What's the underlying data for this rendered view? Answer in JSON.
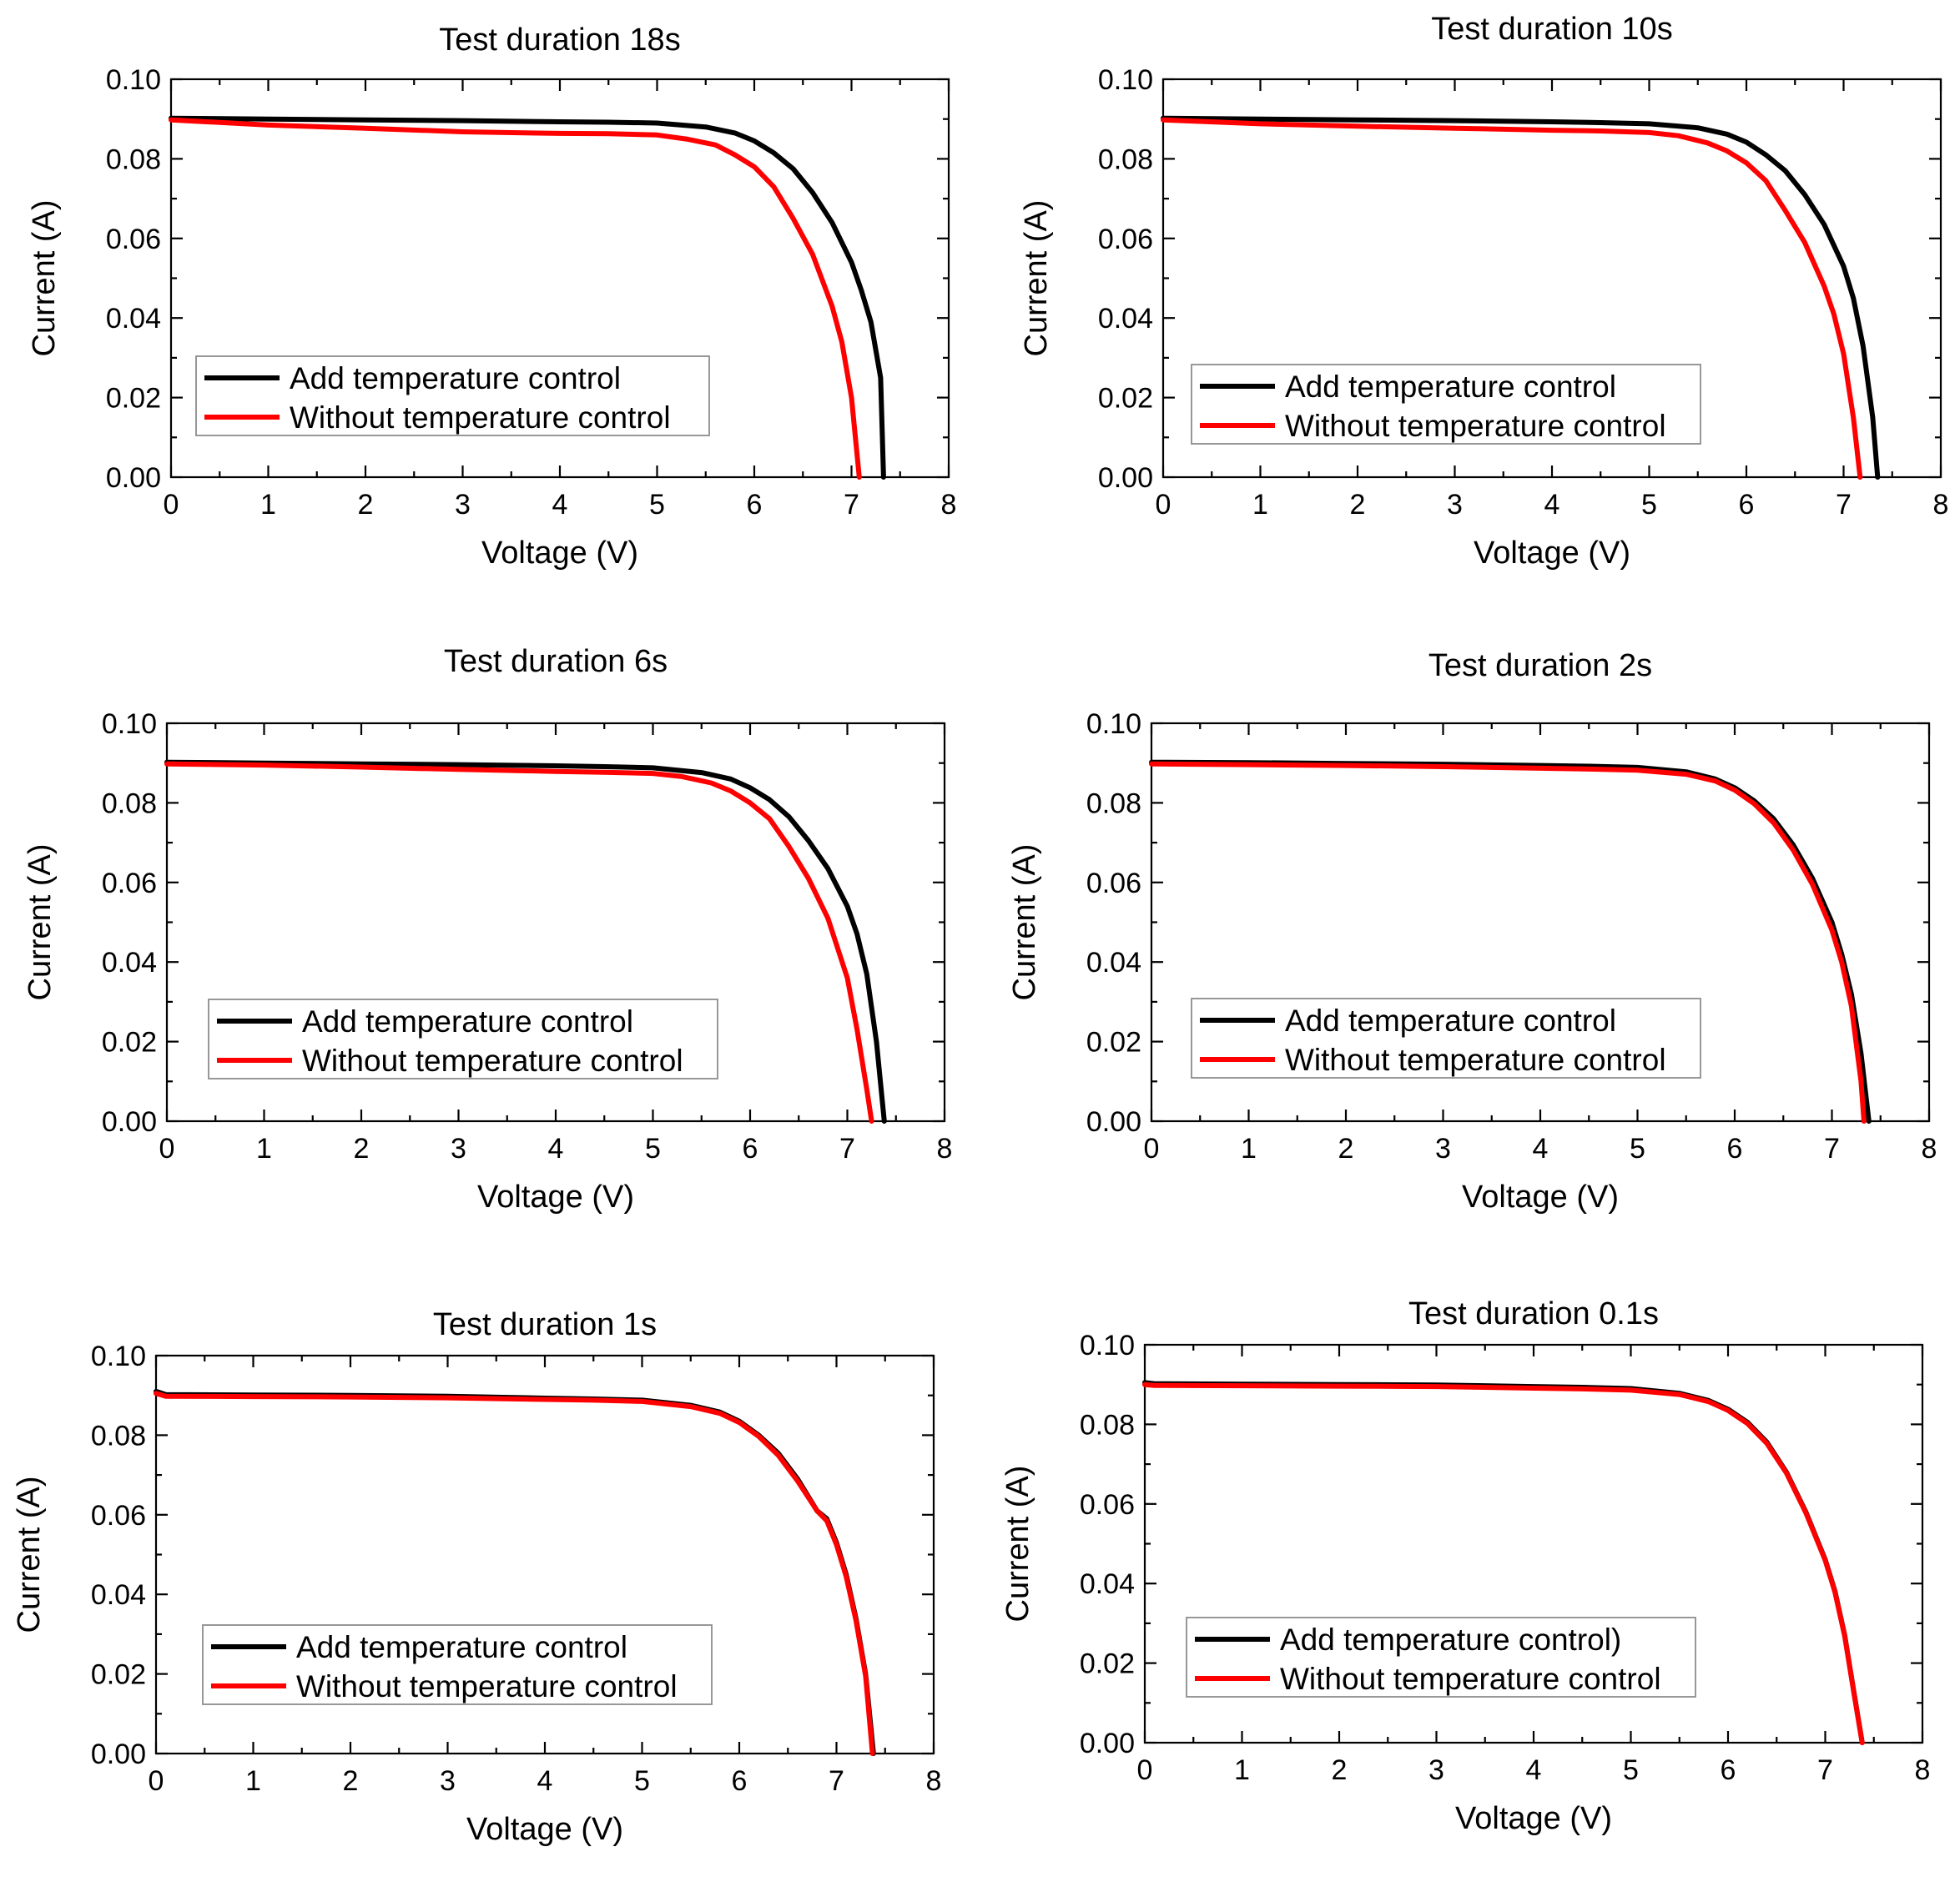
{
  "colors": {
    "with_control": "#000000",
    "without_control": "#ff0000"
  },
  "chart_data": [
    {
      "type": "line",
      "title": "Test duration 18s",
      "xlabel": "Voltage (V)",
      "ylabel": "Current (A)",
      "xlim": [
        0,
        8
      ],
      "ylim": [
        0,
        0.1
      ],
      "xticks": [
        "0",
        "1",
        "2",
        "3",
        "4",
        "5",
        "6",
        "7",
        "8"
      ],
      "yticks": [
        "0.00",
        "0.02",
        "0.04",
        "0.06",
        "0.08",
        "0.10"
      ],
      "grid": false,
      "legend_position": "lower-left",
      "series": [
        {
          "name": "Add temperature control",
          "color": "#000000",
          "x": [
            0,
            1,
            2,
            3,
            4,
            4.5,
            5,
            5.5,
            5.8,
            6.0,
            6.2,
            6.4,
            6.6,
            6.8,
            7.0,
            7.1,
            7.2,
            7.3,
            7.33
          ],
          "y": [
            0.0902,
            0.09,
            0.0898,
            0.0896,
            0.0893,
            0.0892,
            0.089,
            0.088,
            0.0865,
            0.0845,
            0.0815,
            0.0775,
            0.0715,
            0.064,
            0.054,
            0.047,
            0.039,
            0.025,
            0.0
          ]
        },
        {
          "name": "Without temperature control",
          "color": "#ff0000",
          "x": [
            0,
            1,
            2,
            3,
            4,
            4.5,
            5,
            5.3,
            5.6,
            5.8,
            6.0,
            6.2,
            6.4,
            6.6,
            6.8,
            6.9,
            7.0,
            7.08
          ],
          "y": [
            0.0898,
            0.0885,
            0.0877,
            0.0868,
            0.0864,
            0.0863,
            0.086,
            0.085,
            0.0835,
            0.081,
            0.078,
            0.073,
            0.065,
            0.056,
            0.043,
            0.034,
            0.02,
            0.0
          ]
        }
      ]
    },
    {
      "type": "line",
      "title": "Test duration 10s",
      "xlabel": "Voltage (V)",
      "ylabel": "Current (A)",
      "xlim": [
        0,
        8
      ],
      "ylim": [
        0,
        0.1
      ],
      "xticks": [
        "0",
        "1",
        "2",
        "3",
        "4",
        "5",
        "6",
        "7",
        "8"
      ],
      "yticks": [
        "0.00",
        "0.02",
        "0.04",
        "0.06",
        "0.08",
        "0.10"
      ],
      "grid": false,
      "legend_position": "lower-left",
      "series": [
        {
          "name": "Add temperature control",
          "color": "#000000",
          "x": [
            0,
            1,
            2,
            3,
            4,
            4.5,
            5,
            5.5,
            5.8,
            6.0,
            6.2,
            6.4,
            6.6,
            6.8,
            7.0,
            7.1,
            7.2,
            7.3,
            7.35
          ],
          "y": [
            0.0902,
            0.09,
            0.0898,
            0.0896,
            0.0893,
            0.0891,
            0.0888,
            0.0878,
            0.0862,
            0.0842,
            0.081,
            0.077,
            0.071,
            0.0635,
            0.053,
            0.045,
            0.033,
            0.015,
            0.0
          ]
        },
        {
          "name": "Without temperature control",
          "color": "#ff0000",
          "x": [
            0,
            1,
            2,
            3,
            4,
            4.5,
            5,
            5.3,
            5.6,
            5.8,
            6.0,
            6.2,
            6.4,
            6.6,
            6.8,
            6.9,
            7.0,
            7.1,
            7.17
          ],
          "y": [
            0.0898,
            0.0888,
            0.0882,
            0.0877,
            0.0872,
            0.087,
            0.0866,
            0.0858,
            0.084,
            0.082,
            0.079,
            0.0745,
            0.067,
            0.059,
            0.048,
            0.041,
            0.031,
            0.015,
            0.0
          ]
        }
      ]
    },
    {
      "type": "line",
      "title": "Test duration 6s",
      "xlabel": "Voltage (V)",
      "ylabel": "Current (A)",
      "xlim": [
        0,
        8
      ],
      "ylim": [
        0,
        0.1
      ],
      "xticks": [
        "0",
        "1",
        "2",
        "3",
        "4",
        "5",
        "6",
        "7",
        "8"
      ],
      "yticks": [
        "0.00",
        "0.02",
        "0.04",
        "0.06",
        "0.08",
        "0.10"
      ],
      "grid": false,
      "legend_position": "lower-left",
      "series": [
        {
          "name": "Add temperature control",
          "color": "#000000",
          "x": [
            0,
            1,
            2,
            3,
            4,
            4.5,
            5,
            5.5,
            5.8,
            6.0,
            6.2,
            6.4,
            6.6,
            6.8,
            7.0,
            7.1,
            7.2,
            7.3,
            7.38
          ],
          "y": [
            0.0902,
            0.09,
            0.0898,
            0.0896,
            0.0893,
            0.0891,
            0.0888,
            0.0876,
            0.086,
            0.0838,
            0.0808,
            0.0765,
            0.0705,
            0.0635,
            0.054,
            0.047,
            0.037,
            0.02,
            0.0
          ]
        },
        {
          "name": "Without temperature control",
          "color": "#ff0000",
          "x": [
            0,
            1,
            2,
            3,
            4,
            4.5,
            5,
            5.3,
            5.6,
            5.8,
            6.0,
            6.2,
            6.4,
            6.6,
            6.8,
            7.0,
            7.1,
            7.2,
            7.25
          ],
          "y": [
            0.0898,
            0.0895,
            0.089,
            0.0884,
            0.0879,
            0.0877,
            0.0874,
            0.0866,
            0.085,
            0.083,
            0.08,
            0.076,
            0.069,
            0.061,
            0.051,
            0.036,
            0.023,
            0.008,
            0.0
          ]
        }
      ]
    },
    {
      "type": "line",
      "title": "Test duration 2s",
      "xlabel": "Voltage (V)",
      "ylabel": "Current (A)",
      "xlim": [
        0,
        8
      ],
      "ylim": [
        0,
        0.1
      ],
      "xticks": [
        "0",
        "1",
        "2",
        "3",
        "4",
        "5",
        "6",
        "7",
        "8"
      ],
      "yticks": [
        "0.00",
        "0.02",
        "0.04",
        "0.06",
        "0.08",
        "0.10"
      ],
      "grid": false,
      "legend_position": "lower-left",
      "series": [
        {
          "name": "Add temperature control",
          "color": "#000000",
          "x": [
            0,
            1,
            2,
            3,
            4,
            4.5,
            5,
            5.5,
            5.8,
            6.0,
            6.2,
            6.4,
            6.6,
            6.8,
            7.0,
            7.1,
            7.2,
            7.3,
            7.38
          ],
          "y": [
            0.0902,
            0.0901,
            0.0899,
            0.0897,
            0.0894,
            0.0892,
            0.0889,
            0.0878,
            0.086,
            0.0838,
            0.0805,
            0.076,
            0.0695,
            0.061,
            0.05,
            0.042,
            0.032,
            0.017,
            0.0
          ]
        },
        {
          "name": "Without temperature control",
          "color": "#ff0000",
          "x": [
            0,
            1,
            2,
            3,
            4,
            4.5,
            5,
            5.5,
            5.8,
            6.0,
            6.2,
            6.4,
            6.6,
            6.8,
            7.0,
            7.1,
            7.2,
            7.3,
            7.33
          ],
          "y": [
            0.0898,
            0.0896,
            0.0894,
            0.0891,
            0.0887,
            0.0885,
            0.0882,
            0.0872,
            0.0855,
            0.0832,
            0.0798,
            0.075,
            0.0682,
            0.0595,
            0.048,
            0.04,
            0.029,
            0.01,
            0.0
          ]
        }
      ]
    },
    {
      "type": "line",
      "title": "Test duration 1s",
      "xlabel": "Voltage (V)",
      "ylabel": "Current (A)",
      "xlim": [
        0,
        8
      ],
      "ylim": [
        0,
        0.1
      ],
      "xticks": [
        "0",
        "1",
        "2",
        "3",
        "4",
        "5",
        "6",
        "7",
        "8"
      ],
      "yticks": [
        "0.00",
        "0.02",
        "0.04",
        "0.06",
        "0.08",
        "0.10"
      ],
      "grid": false,
      "legend_position": "lower-left",
      "series": [
        {
          "name": "Add temperature control",
          "color": "#000000",
          "x": [
            0,
            0.1,
            1,
            2,
            3,
            4,
            4.5,
            5,
            5.5,
            5.8,
            6.0,
            6.2,
            6.4,
            6.6,
            6.8,
            6.9,
            7.0,
            7.1,
            7.2,
            7.3,
            7.38
          ],
          "y": [
            0.091,
            0.0902,
            0.0901,
            0.09,
            0.0898,
            0.0893,
            0.0891,
            0.0888,
            0.0875,
            0.0858,
            0.0835,
            0.08,
            0.0755,
            0.069,
            0.061,
            0.059,
            0.053,
            0.045,
            0.034,
            0.02,
            0.0
          ]
        },
        {
          "name": "Without temperature control",
          "color": "#ff0000",
          "x": [
            0,
            0.1,
            1,
            2,
            3,
            4,
            4.5,
            5,
            5.5,
            5.8,
            6.0,
            6.2,
            6.4,
            6.6,
            6.8,
            6.9,
            7.0,
            7.1,
            7.2,
            7.3,
            7.37
          ],
          "y": [
            0.0905,
            0.0898,
            0.0897,
            0.0896,
            0.0894,
            0.089,
            0.0888,
            0.0885,
            0.0872,
            0.0855,
            0.0832,
            0.0797,
            0.075,
            0.0685,
            0.061,
            0.0585,
            0.0525,
            0.0445,
            0.0335,
            0.0195,
            0.0
          ]
        }
      ]
    },
    {
      "type": "line",
      "title": "Test duration 0.1s",
      "xlabel": "Voltage (V)",
      "ylabel": "Current (A)",
      "xlim": [
        0,
        8
      ],
      "ylim": [
        0,
        0.1
      ],
      "xticks": [
        "0",
        "1",
        "2",
        "3",
        "4",
        "5",
        "6",
        "7",
        "8"
      ],
      "yticks": [
        "0.00",
        "0.02",
        "0.04",
        "0.06",
        "0.08",
        "0.10"
      ],
      "grid": false,
      "legend_position": "lower-left",
      "series": [
        {
          "name": "Add temperature control)",
          "color": "#000000",
          "x": [
            0,
            0.1,
            1,
            2,
            3,
            4,
            4.5,
            5,
            5.5,
            5.8,
            6.0,
            6.2,
            6.4,
            6.6,
            6.8,
            7.0,
            7.1,
            7.2,
            7.3,
            7.38
          ],
          "y": [
            0.0905,
            0.0902,
            0.0901,
            0.09,
            0.0899,
            0.0895,
            0.0893,
            0.089,
            0.0878,
            0.086,
            0.0838,
            0.0805,
            0.0755,
            0.068,
            0.058,
            0.046,
            0.038,
            0.027,
            0.012,
            0.0
          ]
        },
        {
          "name": "Without temperature control",
          "color": "#ff0000",
          "x": [
            0,
            0.1,
            1,
            2,
            3,
            4,
            4.5,
            5,
            5.5,
            5.8,
            6.0,
            6.2,
            6.4,
            6.6,
            6.8,
            7.0,
            7.1,
            7.2,
            7.3,
            7.38
          ],
          "y": [
            0.09,
            0.0898,
            0.0897,
            0.0896,
            0.0895,
            0.0891,
            0.0889,
            0.0886,
            0.0875,
            0.0857,
            0.0835,
            0.0802,
            0.0752,
            0.0678,
            0.0578,
            0.0458,
            0.0378,
            0.0268,
            0.0118,
            0.0
          ]
        }
      ]
    }
  ]
}
